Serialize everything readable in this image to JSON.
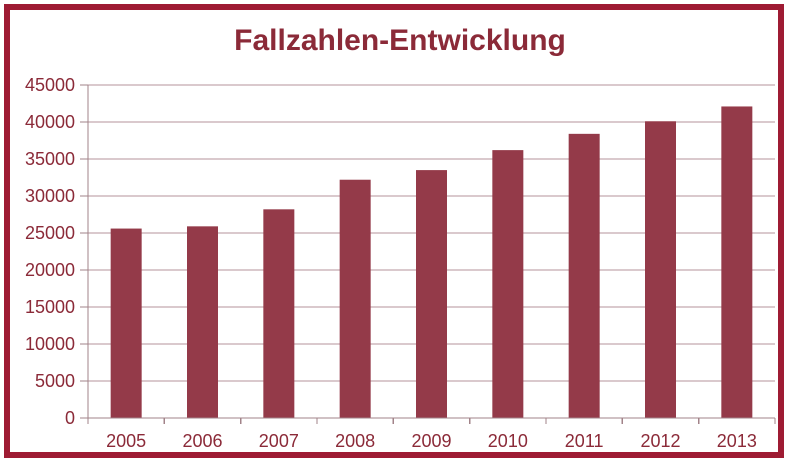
{
  "window": {
    "background_color": "#ffffff",
    "frame_border_color": "#9e1b33"
  },
  "chart_data": {
    "type": "bar",
    "title": "Fallzahlen-Entwicklung",
    "xlabel": "",
    "ylabel": "",
    "categories": [
      "2005",
      "2006",
      "2007",
      "2008",
      "2009",
      "2010",
      "2011",
      "2012",
      "2013"
    ],
    "values": [
      25600,
      25900,
      28200,
      32200,
      33500,
      36200,
      38400,
      40100,
      42100
    ],
    "y_ticks": [
      0,
      5000,
      10000,
      15000,
      20000,
      25000,
      30000,
      35000,
      40000,
      45000
    ],
    "y_tick_labels": [
      "0",
      "5000",
      "10000",
      "15000",
      "20000",
      "25000",
      "30000",
      "35000",
      "40000",
      "45000"
    ],
    "ylim": [
      0,
      45000
    ],
    "grid": true,
    "legend": "none",
    "bar_color": "#943a49",
    "gridline_color": "#b5939b",
    "axis_color": "#a28389",
    "tick_color": "#a28389",
    "label_color": "#8b2a38",
    "title_color": "#8b2a38"
  }
}
